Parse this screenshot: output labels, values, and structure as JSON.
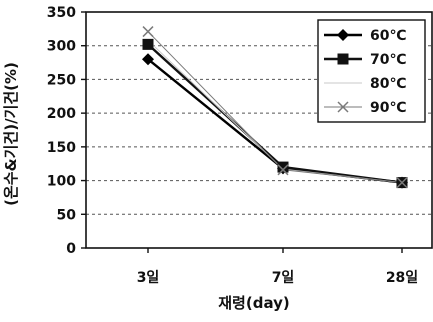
{
  "chart_data": {
    "type": "line",
    "categories": [
      "3일",
      "7일",
      "28일"
    ],
    "series": [
      {
        "name": "60℃",
        "values": [
          280,
          118,
          97
        ],
        "color": "#000000",
        "marker": "diamond"
      },
      {
        "name": "70℃",
        "values": [
          302,
          120,
          97
        ],
        "color": "#111111",
        "marker": "square"
      },
      {
        "name": "80℃",
        "values": [
          308,
          117,
          97
        ],
        "color": "#c8c8c8",
        "marker": "none"
      },
      {
        "name": "90℃",
        "values": [
          321,
          116,
          97
        ],
        "color": "#7a7a7a",
        "marker": "x"
      }
    ],
    "xlabel": "재령(day)",
    "ylabel": "(온수&기건)/기건(%)",
    "ylim": [
      0,
      350
    ],
    "yticks": [
      0,
      50,
      100,
      150,
      200,
      250,
      300,
      350
    ],
    "grid": "horizontal-dashed",
    "legend_position": "top-right"
  }
}
